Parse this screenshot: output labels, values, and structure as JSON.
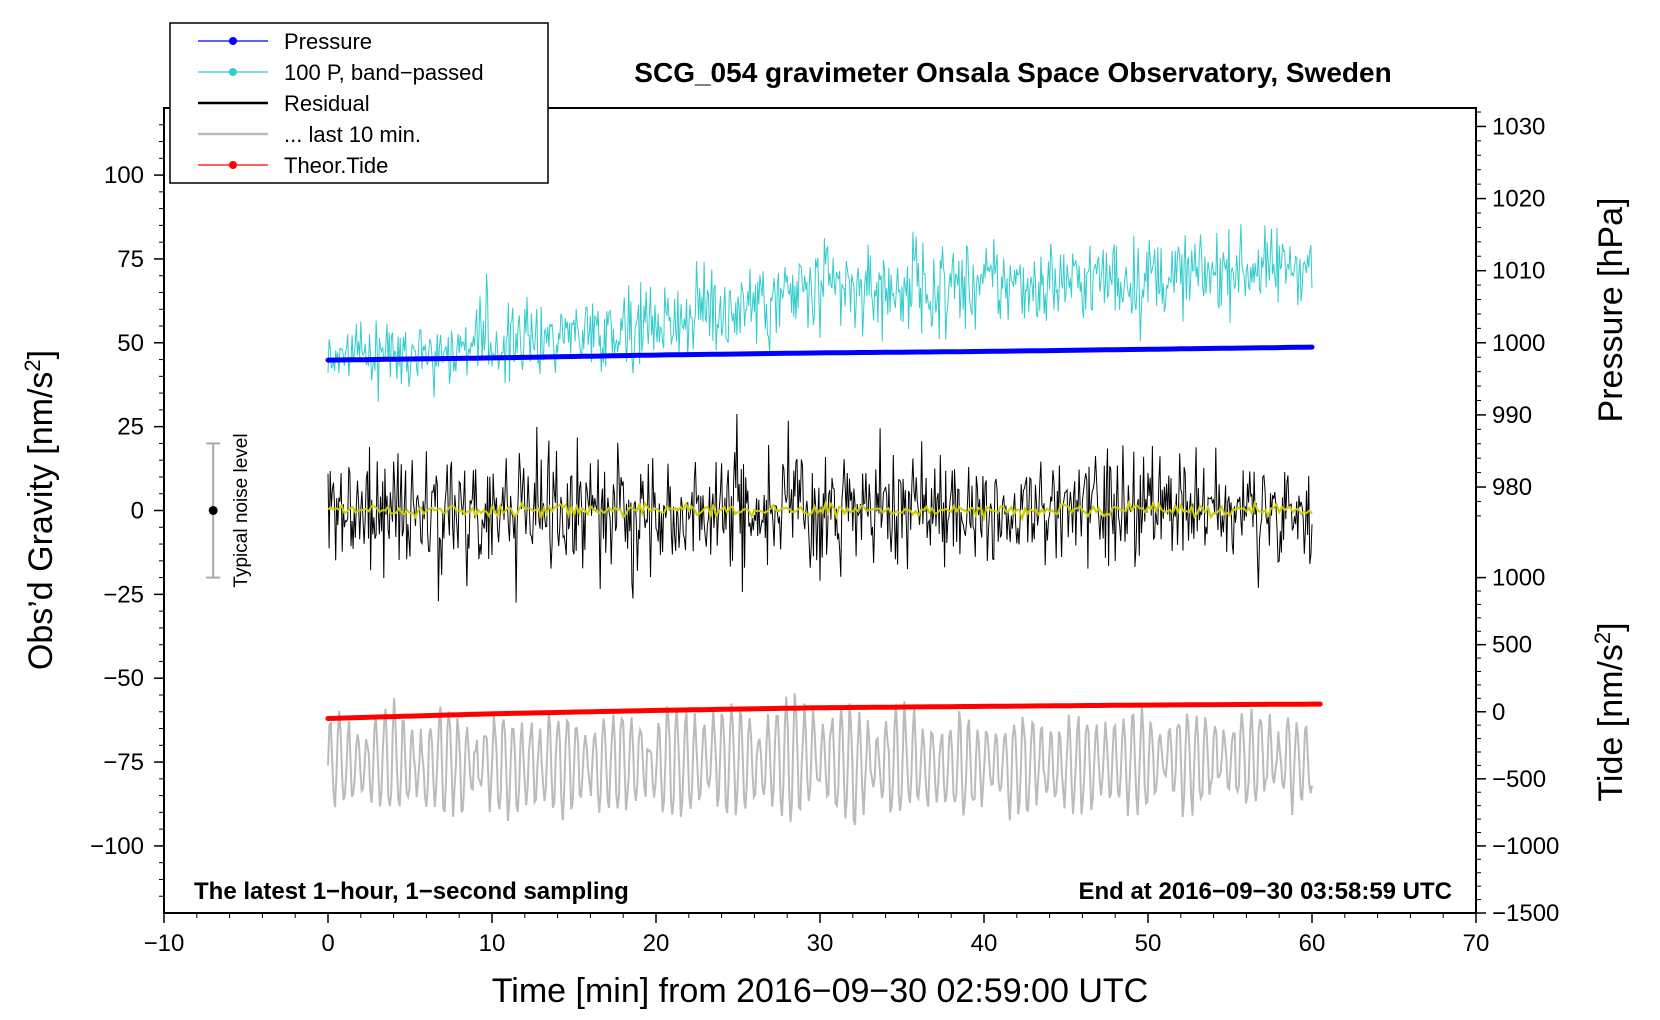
{
  "chart_data": {
    "type": "line",
    "title": "SCG_054 gravimeter Onsala Space Observatory, Sweden",
    "xlabel": "Time [min] from 2016−09−30 02:59:00 UTC",
    "ylabel_left": "Obs’d Gravity [nm/s²]",
    "ylabel_left_base": "Obs’d Gravity [nm/s",
    "ylabel_left_sup": "2",
    "ylabel_left_end": "]",
    "ylabel_right_pressure": "Pressure [hPa]",
    "ylabel_right_tide": "Tide [nm/s²]",
    "ylabel_right_tide_base": "Tide [nm/s",
    "ylabel_right_tide_sup": "2",
    "ylabel_right_tide_end": "]",
    "xlim": [
      -10,
      70
    ],
    "ylim_left": [
      -120,
      120
    ],
    "x_ticks": [
      "−10",
      "0",
      "10",
      "20",
      "30",
      "40",
      "50",
      "60",
      "70"
    ],
    "y_left_ticks": [
      {
        "value": 100,
        "label": "100"
      },
      {
        "value": 75,
        "label": "75"
      },
      {
        "value": 50,
        "label": "50"
      },
      {
        "value": 25,
        "label": "25"
      },
      {
        "value": 0,
        "label": "0"
      },
      {
        "value": -25,
        "label": "−25"
      },
      {
        "value": -50,
        "label": "−50"
      },
      {
        "value": -75,
        "label": "−75"
      },
      {
        "value": -100,
        "label": "−100"
      }
    ],
    "pressure_axis": {
      "ticks": [
        {
          "value": 1030,
          "label": "1030"
        },
        {
          "value": 1020,
          "label": "1020"
        },
        {
          "value": 1010,
          "label": "1010"
        },
        {
          "value": 1000,
          "label": "1000"
        },
        {
          "value": 990,
          "label": "990"
        },
        {
          "value": 980,
          "label": "980"
        }
      ],
      "map": {
        "value_a": 1000,
        "gravity_a": 50,
        "value_b": 980,
        "gravity_b": 7
      }
    },
    "tide_axis": {
      "ticks": [
        {
          "value": 1000,
          "label": "1000"
        },
        {
          "value": 500,
          "label": "500"
        },
        {
          "value": 0,
          "label": "0"
        },
        {
          "value": -500,
          "label": "−500"
        },
        {
          "value": -1000,
          "label": "−1000"
        },
        {
          "value": -1500,
          "label": "−1500"
        }
      ],
      "map": {
        "value_a": 0,
        "gravity_a": -60,
        "value_b": 1000,
        "gravity_b": -20
      }
    },
    "series": [
      {
        "name": "Pressure",
        "color": "#0000ff",
        "x": [
          0,
          10,
          20,
          30,
          40,
          50,
          60
        ],
        "values": [
          997.6,
          997.9,
          998.3,
          998.6,
          998.8,
          999.1,
          999.4
        ]
      },
      {
        "name": "100 P, band−passed",
        "color": "#33cccc",
        "x": [
          0,
          10,
          20,
          30,
          40,
          50,
          60
        ],
        "values": [
          998,
          1000,
          1003,
          1007,
          1008,
          1009,
          1011
        ],
        "spread": [
          8,
          12,
          13,
          16,
          14,
          13,
          12
        ]
      },
      {
        "name": "Residual",
        "color": "#000000",
        "x": [
          0,
          10,
          20,
          30,
          40,
          50,
          60
        ],
        "values": [
          0,
          0,
          0,
          0,
          0,
          0,
          0
        ],
        "spread": [
          15,
          15,
          14,
          16,
          13,
          14,
          12
        ]
      },
      {
        "name": "Residual (smoothed)",
        "color": "#cccc00",
        "x": [
          0,
          10,
          20,
          30,
          40,
          50,
          60
        ],
        "values": [
          0,
          0,
          0,
          0,
          0,
          0,
          0
        ]
      },
      {
        "name": "... last 10 min.",
        "color": "#bbbbbb",
        "x": [
          0,
          10,
          20,
          30,
          40,
          50,
          60
        ],
        "values": [
          -75,
          -76,
          -75,
          -74,
          -76,
          -75,
          -74
        ],
        "spread": [
          14,
          15,
          15,
          18,
          14,
          15,
          13
        ]
      },
      {
        "name": "Theor.Tide",
        "color": "#ff0000",
        "x": [
          0,
          10,
          20,
          30,
          40,
          50,
          60
        ],
        "values": [
          -50,
          -15,
          10,
          30,
          40,
          50,
          57
        ]
      }
    ],
    "legend": [
      {
        "label": "Pressure",
        "color": "#0000ff",
        "marker": true
      },
      {
        "label": "100 P, band−passed",
        "color": "#33cccc",
        "marker": true
      },
      {
        "label": "Residual",
        "color": "#000000",
        "marker": false
      },
      {
        "label": "... last 10 min.",
        "color": "#bbbbbb",
        "marker": false
      },
      {
        "label": "Theor.Tide",
        "color": "#ff0000",
        "marker": true
      }
    ],
    "legend_position": "top-left",
    "noise_bar": {
      "label": "Typical noise level",
      "x": -7,
      "center": 0,
      "half_range": 20
    },
    "annotations": {
      "bottom_left": "The latest 1−hour, 1−second sampling",
      "bottom_right": "End at 2016−09−30 03:58:59 UTC"
    },
    "grid": false
  }
}
